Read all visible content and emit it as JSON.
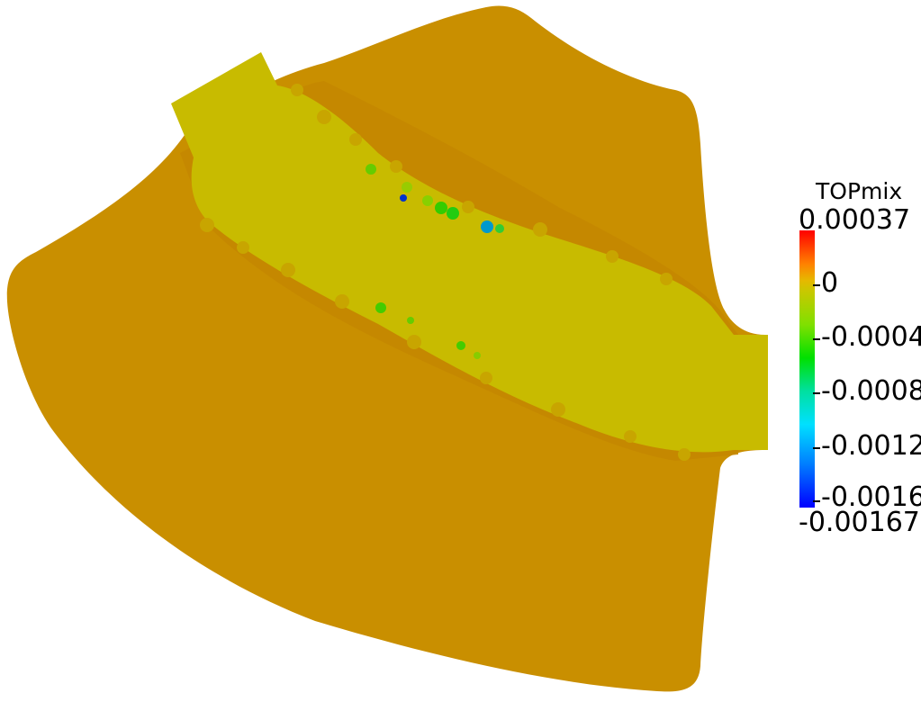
{
  "legend": {
    "title": "TOPmix",
    "max_label": "0.00037",
    "min_label": "-0.00167",
    "ticks": [
      "0",
      "-0.0004",
      "-0.0008",
      "-0.0012",
      "-0.0016"
    ]
  },
  "colors": {
    "background": "#ffffff",
    "domain_fill": "#c98f00",
    "band_fill": "#c8bb00",
    "colormap_top": "#ff0000",
    "colormap_bottom": "#0000ff"
  }
}
